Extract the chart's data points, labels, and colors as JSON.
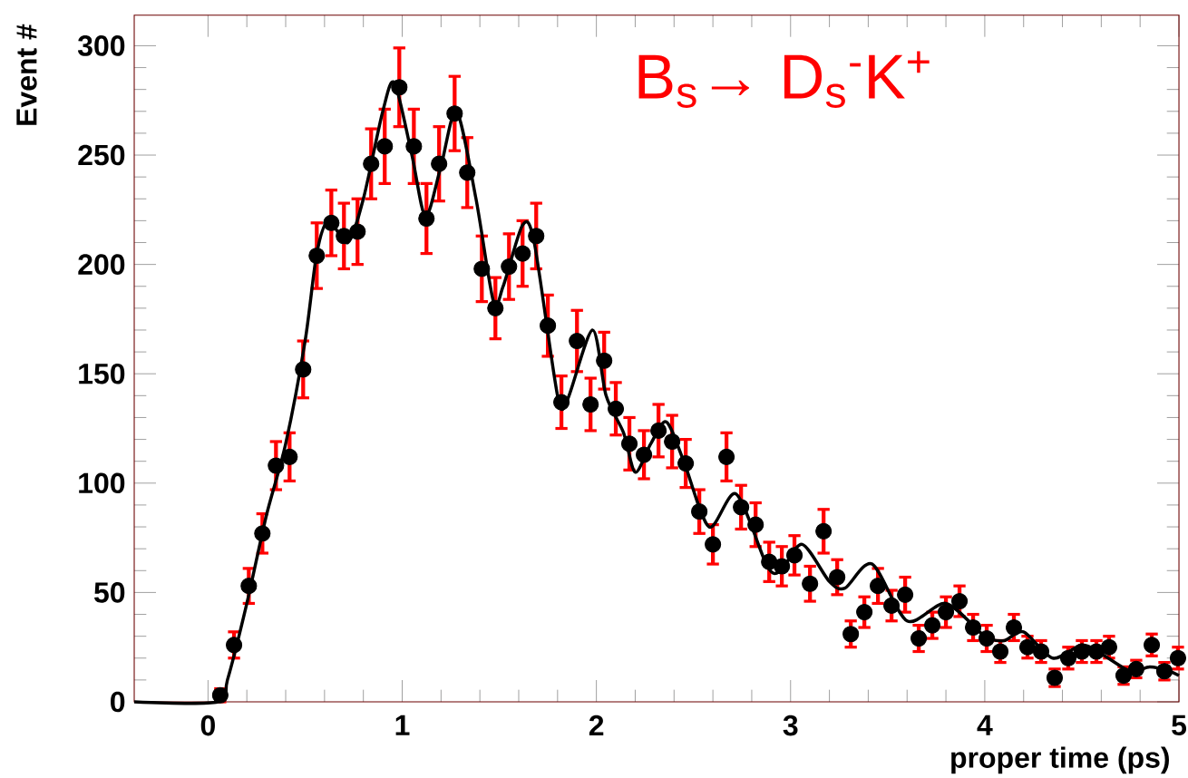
{
  "chart_data": {
    "type": "scatter",
    "xlabel": "proper time (ps)",
    "ylabel": "Event #",
    "annotations": [
      "B$_{s}$→ D$_{s}$$^{-}$K$^{+}$"
    ],
    "xlim": [
      -0.38,
      5
    ],
    "ylim": [
      0,
      314
    ],
    "xticks": [
      0,
      1,
      2,
      3,
      4,
      5
    ],
    "yticks": [
      0,
      50,
      100,
      150,
      200,
      250,
      300
    ],
    "series": [
      {
        "type": "scatter",
        "color": "#000000",
        "marker": "circle",
        "x": [
          0.063,
          0.134,
          0.21,
          0.28,
          0.35,
          0.42,
          0.49,
          0.56,
          0.635,
          0.7,
          0.77,
          0.84,
          0.91,
          0.985,
          1.06,
          1.125,
          1.19,
          1.27,
          1.335,
          1.41,
          1.48,
          1.55,
          1.62,
          1.69,
          1.75,
          1.82,
          1.9,
          1.97,
          2.04,
          2.1,
          2.17,
          2.245,
          2.32,
          2.39,
          2.46,
          2.53,
          2.6,
          2.67,
          2.745,
          2.82,
          2.89,
          2.955,
          3.02,
          3.1,
          3.17,
          3.24,
          3.31,
          3.38,
          3.45,
          3.52,
          3.59,
          3.66,
          3.73,
          3.8,
          3.87,
          3.94,
          4.01,
          4.08,
          4.15,
          4.22,
          4.29,
          4.36,
          4.43,
          4.5,
          4.575,
          4.64,
          4.715,
          4.78,
          4.86,
          4.925,
          4.995
        ],
        "values": [
          3,
          26,
          53,
          77,
          108,
          112,
          152,
          204,
          219,
          213,
          215,
          246,
          254,
          281,
          254,
          221,
          246,
          269,
          242,
          198,
          180,
          199,
          205,
          213,
          172,
          137,
          165,
          136,
          156,
          134,
          118,
          113,
          124,
          119,
          109,
          87,
          72,
          112,
          89,
          81,
          64,
          62,
          67,
          54,
          78,
          57,
          31,
          41,
          53,
          44,
          49,
          29,
          35,
          41,
          46,
          34,
          29,
          23,
          34,
          25,
          23,
          11,
          20,
          23,
          23,
          25,
          12,
          15,
          26,
          14,
          20
        ],
        "errors": [
          3,
          6,
          8,
          9,
          11,
          11,
          13,
          15,
          15,
          15,
          15,
          16,
          17,
          18,
          17,
          16,
          17,
          17,
          16,
          15,
          14,
          15,
          15,
          15,
          14,
          12,
          14,
          12,
          13,
          12,
          12,
          11,
          12,
          12,
          11,
          10,
          9,
          11,
          10,
          10,
          9,
          9,
          9,
          8,
          10,
          8,
          6,
          7,
          8,
          7,
          8,
          6,
          6,
          7,
          7,
          6,
          6,
          5,
          6,
          5,
          5,
          4,
          5,
          5,
          5,
          5,
          4,
          4,
          5,
          4,
          5
        ]
      },
      {
        "type": "line",
        "color": "#000000",
        "marker": "none",
        "line_style": "solid",
        "x": [
          -0.38,
          0.05,
          0.1,
          0.2,
          0.3,
          0.4,
          0.5,
          0.56,
          0.62,
          0.72,
          0.8,
          0.9,
          0.96,
          1.05,
          1.12,
          1.2,
          1.28,
          1.38,
          1.47,
          1.52,
          1.62,
          1.68,
          1.8,
          1.85,
          1.98,
          2.05,
          2.14,
          2.2,
          2.28,
          2.36,
          2.45,
          2.58,
          2.72,
          2.88,
          2.95,
          3.06,
          3.2,
          3.28,
          3.42,
          3.6,
          3.8,
          4.0,
          4.1,
          4.2,
          4.35,
          4.5,
          4.6,
          4.75,
          4.85,
          4.95,
          5
        ],
        "values": [
          0,
          0,
          10,
          45,
          85,
          118,
          165,
          205,
          220,
          210,
          230,
          270,
          283,
          250,
          222,
          245,
          270,
          230,
          183,
          190,
          218,
          210,
          140,
          138,
          170,
          140,
          123,
          105,
          118,
          128,
          110,
          80,
          95,
          62,
          60,
          72,
          55,
          52,
          63,
          37,
          45,
          30,
          28,
          32,
          20,
          26,
          22,
          14,
          16,
          14,
          12
        ]
      }
    ]
  }
}
